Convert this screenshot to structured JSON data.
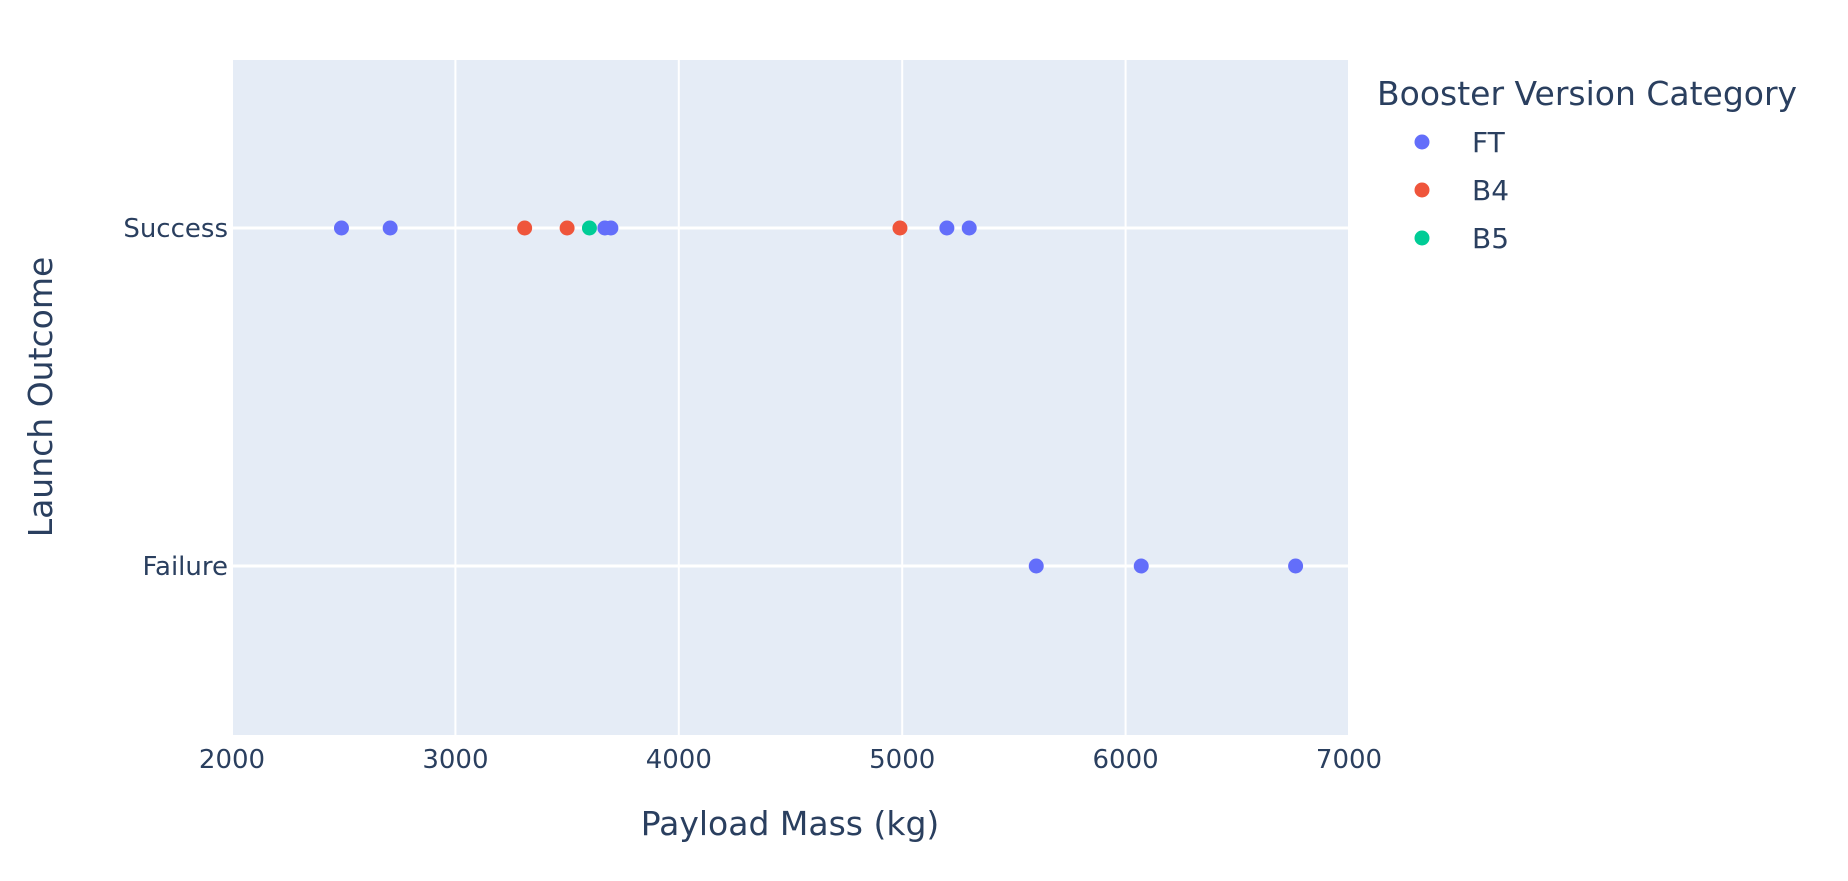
{
  "chart_data": {
    "type": "scatter",
    "xlabel": "Payload Mass (kg)",
    "ylabel": "Launch Outcome",
    "xlim": [
      2000,
      7000
    ],
    "x_ticks": [
      2000,
      3000,
      4000,
      5000,
      6000,
      7000
    ],
    "x_tick_labels": [
      "2000",
      "3000",
      "4000",
      "5000",
      "6000",
      "7000"
    ],
    "categories_y": [
      "Success",
      "Failure"
    ],
    "grid": true,
    "plot_background": "#e5ecf6",
    "grid_color": "#ffffff",
    "legend": {
      "title": "Booster Version Category",
      "position": "top-right",
      "entries": [
        "FT",
        "B4",
        "B5"
      ]
    },
    "series": [
      {
        "name": "FT",
        "color": "#636efa",
        "points": [
          {
            "x": 2490,
            "y": "Success"
          },
          {
            "x": 2708,
            "y": "Success"
          },
          {
            "x": 3669,
            "y": "Success"
          },
          {
            "x": 3696,
            "y": "Success"
          },
          {
            "x": 5200,
            "y": "Success"
          },
          {
            "x": 5300,
            "y": "Success"
          },
          {
            "x": 5600,
            "y": "Failure"
          },
          {
            "x": 6070,
            "y": "Failure"
          },
          {
            "x": 6761,
            "y": "Failure"
          }
        ]
      },
      {
        "name": "B4",
        "color": "#ef553b",
        "points": [
          {
            "x": 3310,
            "y": "Success"
          },
          {
            "x": 3500,
            "y": "Success"
          },
          {
            "x": 4990,
            "y": "Success"
          }
        ]
      },
      {
        "name": "B5",
        "color": "#00cc96",
        "points": [
          {
            "x": 3600,
            "y": "Success"
          }
        ]
      }
    ]
  }
}
